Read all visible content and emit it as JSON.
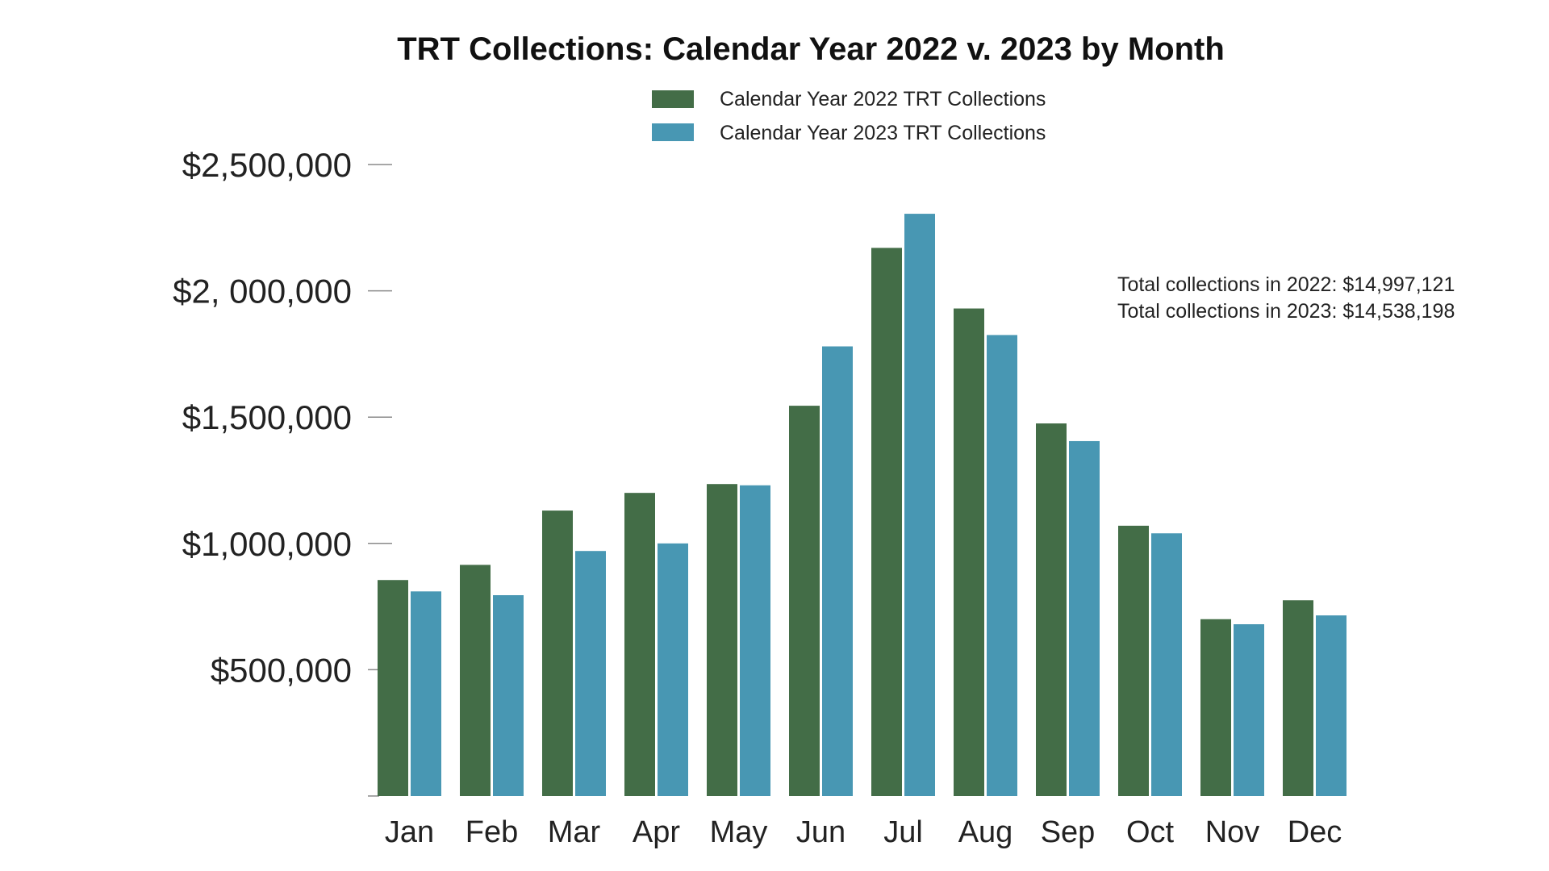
{
  "chart_data": {
    "type": "bar",
    "title": "TRT Collections: Calendar Year 2022 v. 2023 by Month",
    "categories": [
      "Jan",
      "Feb",
      "Mar",
      "Apr",
      "May",
      "Jun",
      "Jul",
      "Aug",
      "Sep",
      "Oct",
      "Nov",
      "Dec"
    ],
    "series": [
      {
        "name": "Calendar Year 2022 TRT Collections",
        "color": "#436d47",
        "values": [
          855000,
          915000,
          1130000,
          1200000,
          1235000,
          1545000,
          2170000,
          1930000,
          1475000,
          1070000,
          700000,
          775000
        ]
      },
      {
        "name": "Calendar Year 2023 TRT Collections",
        "color": "#4897b3",
        "values": [
          810000,
          795000,
          970000,
          1000000,
          1230000,
          1780000,
          2305000,
          1825000,
          1405000,
          1040000,
          680000,
          715000
        ]
      }
    ],
    "ylim": [
      0,
      2500000
    ],
    "yticks": [
      {
        "value": 500000,
        "label": "$500,000"
      },
      {
        "value": 1000000,
        "label": "$1,000,000"
      },
      {
        "value": 1500000,
        "label": "$1,500,000"
      },
      {
        "value": 2000000,
        "label": "$2, 000,000"
      },
      {
        "value": 2500000,
        "label": "$2,500,000"
      }
    ],
    "xlabel": "",
    "ylabel": "",
    "grid": false,
    "legend_position": "top-center",
    "annotations": [
      "Total collections in 2022: $14,997,121",
      "Total collections in 2023: $14,538,198"
    ]
  }
}
